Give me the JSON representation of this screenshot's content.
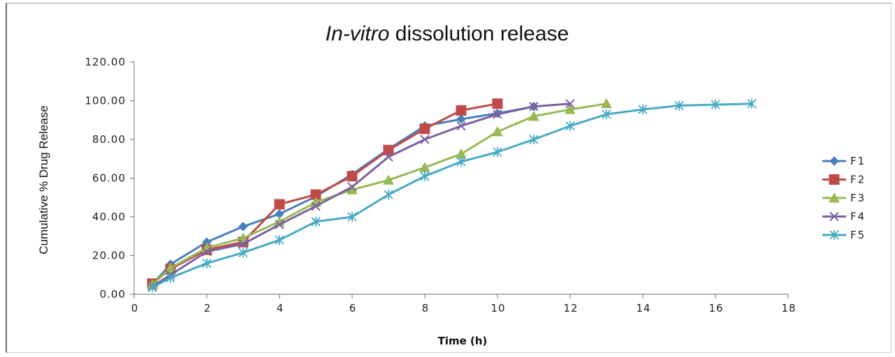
{
  "chart_data": {
    "type": "line",
    "title_italic": "In-vitro",
    "title_rest": " dissolution release",
    "xlabel": "Time (h)",
    "ylabel": "Cumulative % Drug Release",
    "xlim": [
      0,
      18
    ],
    "ylim": [
      0,
      120
    ],
    "x_ticks": [
      "0",
      "2",
      "4",
      "6",
      "8",
      "10",
      "12",
      "14",
      "16",
      "18"
    ],
    "y_ticks": [
      "0.00",
      "20.00",
      "40.00",
      "60.00",
      "80.00",
      "100.00",
      "120.00"
    ],
    "grid": false,
    "legend_position": "right",
    "series": [
      {
        "name": "F1",
        "color": "#4a7ebb",
        "marker": "diamond",
        "points": [
          [
            0.5,
            5
          ],
          [
            1,
            15.5
          ],
          [
            2,
            27
          ],
          [
            3,
            35
          ],
          [
            4,
            41.5
          ],
          [
            5,
            50.5
          ],
          [
            6,
            62
          ],
          [
            7,
            75
          ],
          [
            8,
            87
          ],
          [
            9,
            90.5
          ],
          [
            10,
            93.5
          ],
          [
            11,
            97
          ]
        ]
      },
      {
        "name": "F2",
        "color": "#be4b48",
        "marker": "square",
        "points": [
          [
            0.5,
            5.5
          ],
          [
            1,
            13
          ],
          [
            2,
            23
          ],
          [
            3,
            27
          ],
          [
            4,
            46.5
          ],
          [
            5,
            51.5
          ],
          [
            6,
            61
          ],
          [
            7,
            74.5
          ],
          [
            8,
            85.5
          ],
          [
            9,
            95
          ],
          [
            10,
            98.5
          ]
        ]
      },
      {
        "name": "F3",
        "color": "#98b954",
        "marker": "triangle",
        "points": [
          [
            0.5,
            5
          ],
          [
            1,
            13.5
          ],
          [
            2,
            24
          ],
          [
            3,
            29
          ],
          [
            4,
            37.5
          ],
          [
            5,
            47.5
          ],
          [
            6,
            54
          ],
          [
            7,
            59
          ],
          [
            8,
            65.5
          ],
          [
            9,
            72.5
          ],
          [
            10,
            84
          ],
          [
            11,
            92
          ],
          [
            12,
            95.5
          ],
          [
            13,
            98.5
          ]
        ]
      },
      {
        "name": "F4",
        "color": "#7d60a0",
        "marker": "x",
        "points": [
          [
            0.5,
            4
          ],
          [
            1,
            10
          ],
          [
            2,
            22
          ],
          [
            3,
            26
          ],
          [
            4,
            36
          ],
          [
            5,
            45.5
          ],
          [
            6,
            55.5
          ],
          [
            7,
            71
          ],
          [
            8,
            80
          ],
          [
            9,
            87
          ],
          [
            10,
            93
          ],
          [
            11,
            97
          ],
          [
            12,
            98.5
          ]
        ]
      },
      {
        "name": "F5",
        "color": "#46aac5",
        "marker": "star",
        "points": [
          [
            0.5,
            3.5
          ],
          [
            1,
            8.5
          ],
          [
            2,
            16
          ],
          [
            3,
            21.5
          ],
          [
            4,
            28
          ],
          [
            5,
            37.5
          ],
          [
            6,
            40
          ],
          [
            7,
            51.5
          ],
          [
            8,
            61
          ],
          [
            9,
            68.5
          ],
          [
            10,
            73.5
          ],
          [
            11,
            80
          ],
          [
            12,
            87
          ],
          [
            13,
            93
          ],
          [
            14,
            95.5
          ],
          [
            15,
            97.5
          ],
          [
            16,
            98
          ],
          [
            17,
            98.5
          ]
        ]
      }
    ]
  }
}
